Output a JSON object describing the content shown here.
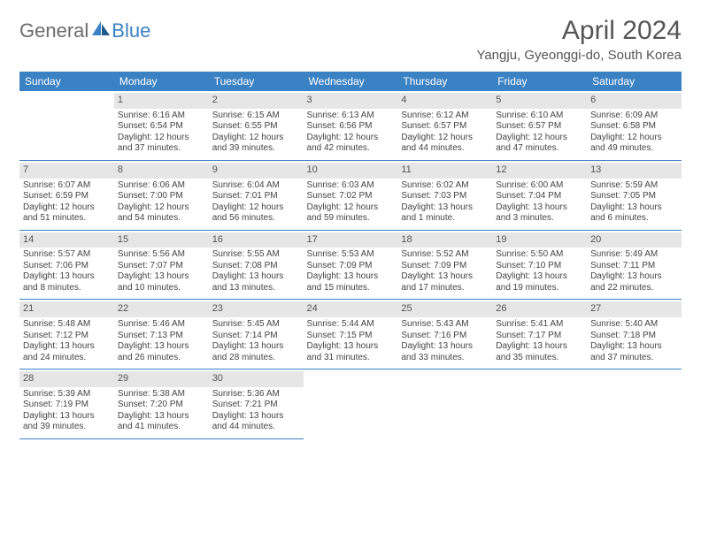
{
  "brand": {
    "part1": "General",
    "part2": "Blue"
  },
  "title": "April 2024",
  "location": "Yangju, Gyeonggi-do, South Korea",
  "colors": {
    "header_bg": "#3b82c4",
    "header_text": "#ffffff",
    "daynum_bg": "#e6e6e6",
    "row_border": "#3b82c4",
    "brand_gray": "#6b6b6b",
    "brand_blue": "#3b82c4"
  },
  "weekdays": [
    "Sunday",
    "Monday",
    "Tuesday",
    "Wednesday",
    "Thursday",
    "Friday",
    "Saturday"
  ],
  "weeks": [
    [
      null,
      {
        "n": "1",
        "sr": "Sunrise: 6:16 AM",
        "ss": "Sunset: 6:54 PM",
        "d1": "Daylight: 12 hours",
        "d2": "and 37 minutes."
      },
      {
        "n": "2",
        "sr": "Sunrise: 6:15 AM",
        "ss": "Sunset: 6:55 PM",
        "d1": "Daylight: 12 hours",
        "d2": "and 39 minutes."
      },
      {
        "n": "3",
        "sr": "Sunrise: 6:13 AM",
        "ss": "Sunset: 6:56 PM",
        "d1": "Daylight: 12 hours",
        "d2": "and 42 minutes."
      },
      {
        "n": "4",
        "sr": "Sunrise: 6:12 AM",
        "ss": "Sunset: 6:57 PM",
        "d1": "Daylight: 12 hours",
        "d2": "and 44 minutes."
      },
      {
        "n": "5",
        "sr": "Sunrise: 6:10 AM",
        "ss": "Sunset: 6:57 PM",
        "d1": "Daylight: 12 hours",
        "d2": "and 47 minutes."
      },
      {
        "n": "6",
        "sr": "Sunrise: 6:09 AM",
        "ss": "Sunset: 6:58 PM",
        "d1": "Daylight: 12 hours",
        "d2": "and 49 minutes."
      }
    ],
    [
      {
        "n": "7",
        "sr": "Sunrise: 6:07 AM",
        "ss": "Sunset: 6:59 PM",
        "d1": "Daylight: 12 hours",
        "d2": "and 51 minutes."
      },
      {
        "n": "8",
        "sr": "Sunrise: 6:06 AM",
        "ss": "Sunset: 7:00 PM",
        "d1": "Daylight: 12 hours",
        "d2": "and 54 minutes."
      },
      {
        "n": "9",
        "sr": "Sunrise: 6:04 AM",
        "ss": "Sunset: 7:01 PM",
        "d1": "Daylight: 12 hours",
        "d2": "and 56 minutes."
      },
      {
        "n": "10",
        "sr": "Sunrise: 6:03 AM",
        "ss": "Sunset: 7:02 PM",
        "d1": "Daylight: 12 hours",
        "d2": "and 59 minutes."
      },
      {
        "n": "11",
        "sr": "Sunrise: 6:02 AM",
        "ss": "Sunset: 7:03 PM",
        "d1": "Daylight: 13 hours",
        "d2": "and 1 minute."
      },
      {
        "n": "12",
        "sr": "Sunrise: 6:00 AM",
        "ss": "Sunset: 7:04 PM",
        "d1": "Daylight: 13 hours",
        "d2": "and 3 minutes."
      },
      {
        "n": "13",
        "sr": "Sunrise: 5:59 AM",
        "ss": "Sunset: 7:05 PM",
        "d1": "Daylight: 13 hours",
        "d2": "and 6 minutes."
      }
    ],
    [
      {
        "n": "14",
        "sr": "Sunrise: 5:57 AM",
        "ss": "Sunset: 7:06 PM",
        "d1": "Daylight: 13 hours",
        "d2": "and 8 minutes."
      },
      {
        "n": "15",
        "sr": "Sunrise: 5:56 AM",
        "ss": "Sunset: 7:07 PM",
        "d1": "Daylight: 13 hours",
        "d2": "and 10 minutes."
      },
      {
        "n": "16",
        "sr": "Sunrise: 5:55 AM",
        "ss": "Sunset: 7:08 PM",
        "d1": "Daylight: 13 hours",
        "d2": "and 13 minutes."
      },
      {
        "n": "17",
        "sr": "Sunrise: 5:53 AM",
        "ss": "Sunset: 7:09 PM",
        "d1": "Daylight: 13 hours",
        "d2": "and 15 minutes."
      },
      {
        "n": "18",
        "sr": "Sunrise: 5:52 AM",
        "ss": "Sunset: 7:09 PM",
        "d1": "Daylight: 13 hours",
        "d2": "and 17 minutes."
      },
      {
        "n": "19",
        "sr": "Sunrise: 5:50 AM",
        "ss": "Sunset: 7:10 PM",
        "d1": "Daylight: 13 hours",
        "d2": "and 19 minutes."
      },
      {
        "n": "20",
        "sr": "Sunrise: 5:49 AM",
        "ss": "Sunset: 7:11 PM",
        "d1": "Daylight: 13 hours",
        "d2": "and 22 minutes."
      }
    ],
    [
      {
        "n": "21",
        "sr": "Sunrise: 5:48 AM",
        "ss": "Sunset: 7:12 PM",
        "d1": "Daylight: 13 hours",
        "d2": "and 24 minutes."
      },
      {
        "n": "22",
        "sr": "Sunrise: 5:46 AM",
        "ss": "Sunset: 7:13 PM",
        "d1": "Daylight: 13 hours",
        "d2": "and 26 minutes."
      },
      {
        "n": "23",
        "sr": "Sunrise: 5:45 AM",
        "ss": "Sunset: 7:14 PM",
        "d1": "Daylight: 13 hours",
        "d2": "and 28 minutes."
      },
      {
        "n": "24",
        "sr": "Sunrise: 5:44 AM",
        "ss": "Sunset: 7:15 PM",
        "d1": "Daylight: 13 hours",
        "d2": "and 31 minutes."
      },
      {
        "n": "25",
        "sr": "Sunrise: 5:43 AM",
        "ss": "Sunset: 7:16 PM",
        "d1": "Daylight: 13 hours",
        "d2": "and 33 minutes."
      },
      {
        "n": "26",
        "sr": "Sunrise: 5:41 AM",
        "ss": "Sunset: 7:17 PM",
        "d1": "Daylight: 13 hours",
        "d2": "and 35 minutes."
      },
      {
        "n": "27",
        "sr": "Sunrise: 5:40 AM",
        "ss": "Sunset: 7:18 PM",
        "d1": "Daylight: 13 hours",
        "d2": "and 37 minutes."
      }
    ],
    [
      {
        "n": "28",
        "sr": "Sunrise: 5:39 AM",
        "ss": "Sunset: 7:19 PM",
        "d1": "Daylight: 13 hours",
        "d2": "and 39 minutes."
      },
      {
        "n": "29",
        "sr": "Sunrise: 5:38 AM",
        "ss": "Sunset: 7:20 PM",
        "d1": "Daylight: 13 hours",
        "d2": "and 41 minutes."
      },
      {
        "n": "30",
        "sr": "Sunrise: 5:36 AM",
        "ss": "Sunset: 7:21 PM",
        "d1": "Daylight: 13 hours",
        "d2": "and 44 minutes."
      },
      null,
      null,
      null,
      null
    ]
  ]
}
